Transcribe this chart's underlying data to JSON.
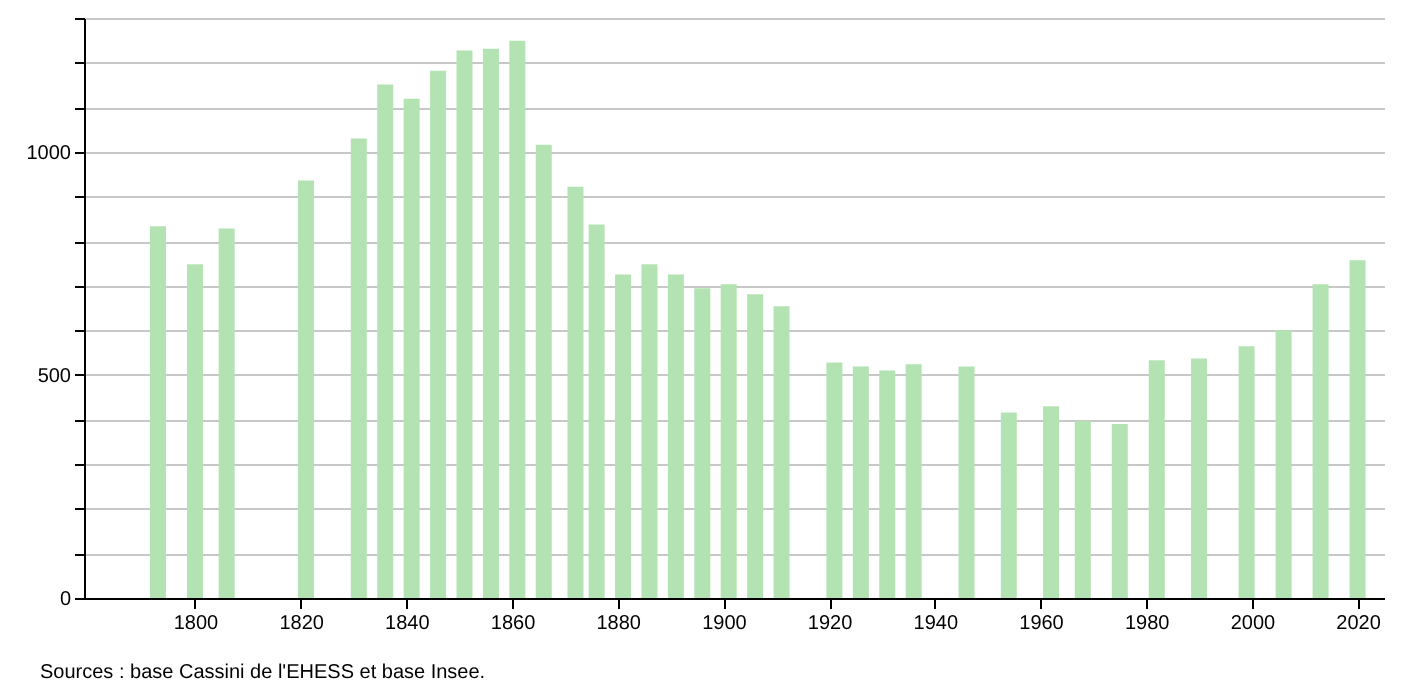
{
  "chart_data": {
    "type": "bar",
    "x": [
      1793,
      1800,
      1806,
      1821,
      1831,
      1836,
      1841,
      1846,
      1851,
      1856,
      1861,
      1866,
      1872,
      1876,
      1881,
      1886,
      1891,
      1896,
      1901,
      1906,
      1911,
      1921,
      1926,
      1931,
      1936,
      1946,
      1954,
      1962,
      1968,
      1975,
      1982,
      1990,
      1999,
      2006,
      2013,
      2020
    ],
    "values": [
      833,
      748,
      828,
      936,
      1030,
      1151,
      1119,
      1182,
      1227,
      1231,
      1249,
      1016,
      922,
      837,
      725,
      748,
      725,
      694,
      703,
      681,
      654,
      528,
      519,
      510,
      524,
      519,
      416,
      430,
      397,
      390,
      533,
      537,
      564,
      600,
      703,
      757
    ],
    "color": "#b3e3b3",
    "xlim": [
      1779,
      2025
    ],
    "xticks": [
      1800,
      1820,
      1840,
      1860,
      1880,
      1900,
      1920,
      1940,
      1960,
      1980,
      2000,
      2020
    ],
    "ylim": [
      0,
      1300
    ],
    "yticks": [
      0,
      {
        "value": 100,
        "label": null
      },
      {
        "value": 200,
        "label": null
      },
      {
        "value": 300,
        "label": null
      },
      {
        "value": 400,
        "label": null
      },
      500,
      {
        "value": 600,
        "label": null
      },
      {
        "value": 700,
        "label": null
      },
      {
        "value": 800,
        "label": null
      },
      {
        "value": 900,
        "label": null
      },
      1000,
      {
        "value": 1100,
        "label": null
      },
      {
        "value": 1200,
        "label": null
      },
      {
        "value": 1300,
        "label": null
      }
    ],
    "grid": "y",
    "annotations": [
      "Sources : base Cassini de l'EHESS et base Insee."
    ]
  }
}
